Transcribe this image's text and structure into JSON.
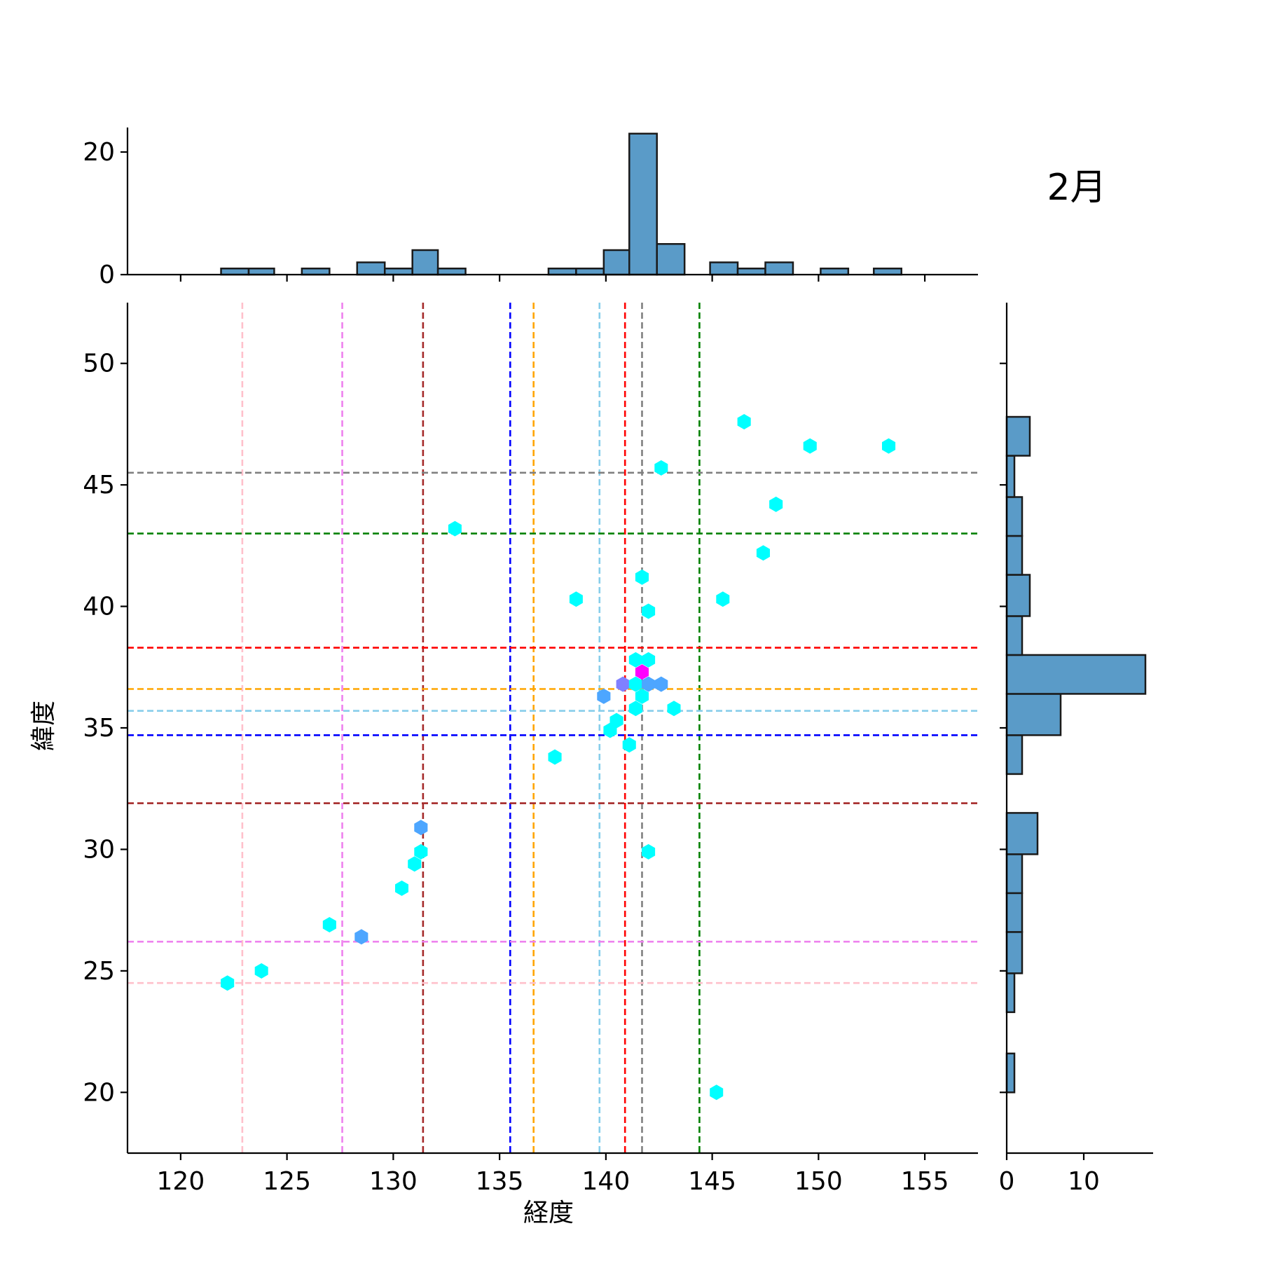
{
  "chart_data": {
    "type": "scatter",
    "variant": "hexbin-jointplot",
    "title": "2月",
    "xlabel": "経度",
    "ylabel": "緯度",
    "xlim": [
      117.5,
      157.5
    ],
    "ylim": [
      17.5,
      52.5
    ],
    "xticks": [
      120,
      125,
      130,
      135,
      140,
      145,
      150,
      155
    ],
    "yticks": [
      20,
      25,
      30,
      35,
      40,
      45,
      50
    ],
    "points": [
      {
        "x": 122.2,
        "y": 24.5,
        "count": 1
      },
      {
        "x": 123.8,
        "y": 25.0,
        "count": 1
      },
      {
        "x": 127.0,
        "y": 26.9,
        "count": 1
      },
      {
        "x": 128.5,
        "y": 26.4,
        "count": 2
      },
      {
        "x": 130.4,
        "y": 28.4,
        "count": 1
      },
      {
        "x": 131.0,
        "y": 29.4,
        "count": 1
      },
      {
        "x": 131.3,
        "y": 29.9,
        "count": 1
      },
      {
        "x": 131.3,
        "y": 30.9,
        "count": 2
      },
      {
        "x": 132.9,
        "y": 43.2,
        "count": 1
      },
      {
        "x": 137.6,
        "y": 33.8,
        "count": 1
      },
      {
        "x": 138.6,
        "y": 40.3,
        "count": 1
      },
      {
        "x": 139.9,
        "y": 36.3,
        "count": 2
      },
      {
        "x": 140.2,
        "y": 34.9,
        "count": 1
      },
      {
        "x": 140.5,
        "y": 35.3,
        "count": 1
      },
      {
        "x": 140.8,
        "y": 36.8,
        "count": 3
      },
      {
        "x": 141.1,
        "y": 34.3,
        "count": 1
      },
      {
        "x": 141.4,
        "y": 37.8,
        "count": 1
      },
      {
        "x": 141.4,
        "y": 35.8,
        "count": 1
      },
      {
        "x": 141.4,
        "y": 36.8,
        "count": 1
      },
      {
        "x": 141.7,
        "y": 41.2,
        "count": 1
      },
      {
        "x": 141.7,
        "y": 37.3,
        "count": 4
      },
      {
        "x": 141.7,
        "y": 36.3,
        "count": 1
      },
      {
        "x": 142.0,
        "y": 37.8,
        "count": 1
      },
      {
        "x": 142.0,
        "y": 39.8,
        "count": 1
      },
      {
        "x": 142.0,
        "y": 36.8,
        "count": 2
      },
      {
        "x": 142.0,
        "y": 29.9,
        "count": 1
      },
      {
        "x": 142.6,
        "y": 45.7,
        "count": 1
      },
      {
        "x": 142.6,
        "y": 36.8,
        "count": 2
      },
      {
        "x": 143.2,
        "y": 35.8,
        "count": 1
      },
      {
        "x": 145.2,
        "y": 20.0,
        "count": 1
      },
      {
        "x": 145.5,
        "y": 40.3,
        "count": 1
      },
      {
        "x": 146.5,
        "y": 47.6,
        "count": 1
      },
      {
        "x": 147.4,
        "y": 42.2,
        "count": 1
      },
      {
        "x": 148.0,
        "y": 44.2,
        "count": 1
      },
      {
        "x": 149.6,
        "y": 46.6,
        "count": 1
      },
      {
        "x": 153.3,
        "y": 46.6,
        "count": 1
      }
    ],
    "vlines": [
      {
        "x": 122.9,
        "color": "#ffc0cb"
      },
      {
        "x": 127.6,
        "color": "#ee82ee"
      },
      {
        "x": 131.4,
        "color": "#a52a2a"
      },
      {
        "x": 135.5,
        "color": "#0000ff"
      },
      {
        "x": 136.6,
        "color": "#ffa500"
      },
      {
        "x": 139.7,
        "color": "#87ceeb"
      },
      {
        "x": 140.9,
        "color": "#ff0000"
      },
      {
        "x": 141.7,
        "color": "#808080"
      },
      {
        "x": 144.4,
        "color": "#008000"
      }
    ],
    "hlines": [
      {
        "y": 45.5,
        "color": "#808080"
      },
      {
        "y": 43.0,
        "color": "#008000"
      },
      {
        "y": 38.3,
        "color": "#ff0000"
      },
      {
        "y": 36.6,
        "color": "#ffa500"
      },
      {
        "y": 35.7,
        "color": "#87ceeb"
      },
      {
        "y": 34.7,
        "color": "#0000ff"
      },
      {
        "y": 31.9,
        "color": "#a52a2a"
      },
      {
        "y": 26.2,
        "color": "#ee82ee"
      },
      {
        "y": 24.5,
        "color": "#ffc0cb"
      }
    ],
    "top_hist": {
      "yticks": [
        0,
        20
      ],
      "ylim": [
        0,
        24
      ],
      "bins": [
        {
          "x0": 121.9,
          "x1": 123.2,
          "count": 1
        },
        {
          "x0": 123.2,
          "x1": 124.4,
          "count": 1
        },
        {
          "x0": 125.7,
          "x1": 127.0,
          "count": 1
        },
        {
          "x0": 128.3,
          "x1": 129.6,
          "count": 2
        },
        {
          "x0": 129.6,
          "x1": 130.9,
          "count": 1
        },
        {
          "x0": 130.9,
          "x1": 132.1,
          "count": 4
        },
        {
          "x0": 132.1,
          "x1": 133.4,
          "count": 1
        },
        {
          "x0": 137.3,
          "x1": 138.6,
          "count": 1
        },
        {
          "x0": 138.6,
          "x1": 139.9,
          "count": 1
        },
        {
          "x0": 139.9,
          "x1": 141.1,
          "count": 4
        },
        {
          "x0": 141.1,
          "x1": 142.4,
          "count": 23
        },
        {
          "x0": 142.4,
          "x1": 143.7,
          "count": 5
        },
        {
          "x0": 144.9,
          "x1": 146.2,
          "count": 2
        },
        {
          "x0": 146.2,
          "x1": 147.5,
          "count": 1
        },
        {
          "x0": 147.5,
          "x1": 148.8,
          "count": 2
        },
        {
          "x0": 150.1,
          "x1": 151.4,
          "count": 1
        },
        {
          "x0": 152.6,
          "x1": 153.9,
          "count": 1
        }
      ]
    },
    "right_hist": {
      "xticks": [
        0,
        10
      ],
      "xlim": [
        0,
        19
      ],
      "bins": [
        {
          "y0": 20.0,
          "y1": 21.6,
          "count": 1
        },
        {
          "y0": 23.3,
          "y1": 24.9,
          "count": 1
        },
        {
          "y0": 24.9,
          "y1": 26.6,
          "count": 2
        },
        {
          "y0": 26.6,
          "y1": 28.2,
          "count": 2
        },
        {
          "y0": 28.2,
          "y1": 29.8,
          "count": 2
        },
        {
          "y0": 29.8,
          "y1": 31.5,
          "count": 4
        },
        {
          "y0": 33.1,
          "y1": 34.7,
          "count": 2
        },
        {
          "y0": 34.7,
          "y1": 36.4,
          "count": 7
        },
        {
          "y0": 36.4,
          "y1": 38.0,
          "count": 18
        },
        {
          "y0": 38.0,
          "y1": 39.6,
          "count": 2
        },
        {
          "y0": 39.6,
          "y1": 41.3,
          "count": 3
        },
        {
          "y0": 41.3,
          "y1": 42.9,
          "count": 2
        },
        {
          "y0": 42.9,
          "y1": 44.5,
          "count": 2
        },
        {
          "y0": 44.5,
          "y1": 46.2,
          "count": 1
        },
        {
          "y0": 46.2,
          "y1": 47.8,
          "count": 3
        }
      ]
    },
    "colors": {
      "hex_low": "#00ffff",
      "hex_mid": "#4da6ff",
      "hex_mid2": "#8080ff",
      "hex_high": "#ff00ff",
      "hist_fill": "#5a9bc8",
      "hist_edge": "#1a1a1a",
      "axis": "#000000"
    }
  }
}
